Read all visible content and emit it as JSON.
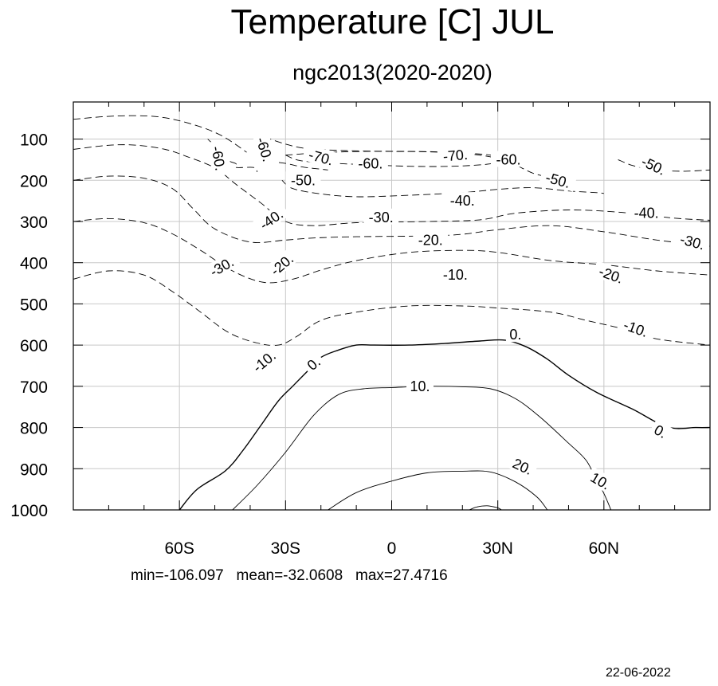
{
  "header": {
    "title": "Temperature [C] JUL",
    "subtitle": "ngc2013(2020-2020)"
  },
  "footer": {
    "stats": "min=-106.097   mean=-32.0608   max=27.4716",
    "date": "22-06-2022"
  },
  "chart_data": {
    "type": "contour",
    "title": "Temperature [C] JUL",
    "subtitle": "ngc2013(2020-2020)",
    "xlabel": "",
    "ylabel": "",
    "x_axis": {
      "range": [
        -90,
        90
      ],
      "ticks": [
        {
          "value": -60,
          "label": "60S"
        },
        {
          "value": -30,
          "label": "30S"
        },
        {
          "value": 0,
          "label": "0"
        },
        {
          "value": 30,
          "label": "30N"
        },
        {
          "value": 60,
          "label": "60N"
        }
      ],
      "minor_ticks": [
        -80,
        -70,
        -50,
        -40,
        -20,
        -10,
        10,
        20,
        40,
        50,
        70,
        80
      ]
    },
    "y_axis": {
      "range": [
        1000,
        10
      ],
      "ticks": [
        100,
        200,
        300,
        400,
        500,
        600,
        700,
        800,
        900,
        1000
      ]
    },
    "grid": true,
    "line_style": {
      "negative": "dashed",
      "zero": "solid-thick",
      "positive": "solid-thin"
    },
    "contours": [
      {
        "level": -70,
        "points": [
          [
            -30,
            139
          ],
          [
            -20,
            133
          ],
          [
            -8,
            130
          ],
          [
            5,
            130
          ],
          [
            17,
            133
          ],
          [
            27,
            138
          ],
          [
            32,
            148
          ],
          [
            28,
            160
          ],
          [
            17,
            166
          ],
          [
            5,
            166
          ],
          [
            -8,
            162
          ],
          [
            -18,
            158
          ],
          [
            -26,
            152
          ],
          [
            -30,
            139
          ]
        ]
      },
      {
        "level": -70,
        "points": [
          [
            -35,
            154
          ],
          [
            -30,
            159
          ],
          [
            -25,
            168
          ],
          [
            -18,
            175
          ]
        ]
      },
      {
        "level": -60,
        "points": [
          [
            -36,
            95
          ],
          [
            -30,
            112
          ],
          [
            -24,
            123
          ],
          [
            -13,
            128
          ],
          [
            0,
            130
          ],
          [
            13,
            131
          ],
          [
            23,
            137
          ],
          [
            30,
            147
          ],
          [
            34,
            158
          ],
          [
            37,
            171
          ],
          [
            40,
            183
          ],
          [
            44,
            192
          ],
          [
            46,
            194
          ]
        ]
      },
      {
        "level": -60,
        "points": [
          [
            -52,
            100
          ],
          [
            -49,
            126
          ],
          [
            -49,
            135
          ],
          [
            -46,
            153
          ],
          [
            -44,
            160
          ],
          [
            -44,
            169
          ],
          [
            -39,
            169
          ],
          [
            -38,
            180
          ]
        ]
      },
      {
        "level": -50,
        "points": [
          [
            -90,
            52
          ],
          [
            -78,
            44
          ],
          [
            -66,
            46
          ],
          [
            -56,
            65
          ],
          [
            -48,
            92
          ],
          [
            -41,
            132
          ]
        ]
      },
      {
        "level": -50,
        "points": [
          [
            -31,
            200
          ],
          [
            -28,
            220
          ],
          [
            -20,
            233
          ],
          [
            -10,
            240
          ],
          [
            3,
            237
          ],
          [
            20,
            230
          ],
          [
            30,
            222
          ],
          [
            40,
            218
          ],
          [
            50,
            226
          ],
          [
            58,
            230
          ],
          [
            60,
            232
          ]
        ]
      },
      {
        "level": -50,
        "points": [
          [
            64,
            150
          ],
          [
            68,
            164
          ],
          [
            72,
            171
          ],
          [
            76,
            176
          ],
          [
            83,
            178
          ],
          [
            90,
            175
          ]
        ]
      },
      {
        "level": -40,
        "points": [
          [
            -90,
            125
          ],
          [
            -80,
            115
          ],
          [
            -72,
            115
          ],
          [
            -64,
            125
          ],
          [
            -58,
            142
          ],
          [
            -50,
            170
          ],
          [
            -44,
            210
          ],
          [
            -37,
            255
          ],
          [
            -30,
            300
          ],
          [
            -22,
            310
          ],
          [
            -10,
            303
          ],
          [
            10,
            300
          ],
          [
            25,
            296
          ],
          [
            35,
            280
          ],
          [
            50,
            272
          ],
          [
            65,
            278
          ],
          [
            80,
            292
          ],
          [
            90,
            297
          ]
        ]
      },
      {
        "level": -30,
        "points": [
          [
            -90,
            200
          ],
          [
            -80,
            190
          ],
          [
            -70,
            195
          ],
          [
            -62,
            220
          ],
          [
            -56,
            270
          ],
          [
            -50,
            318
          ],
          [
            -40,
            350
          ],
          [
            -30,
            345
          ],
          [
            -22,
            340
          ],
          [
            -10,
            337
          ],
          [
            10,
            335
          ],
          [
            20,
            331
          ],
          [
            30,
            320
          ],
          [
            45,
            310
          ],
          [
            60,
            325
          ],
          [
            75,
            345
          ],
          [
            90,
            360
          ]
        ]
      },
      {
        "level": -20,
        "points": [
          [
            -90,
            300
          ],
          [
            -80,
            293
          ],
          [
            -70,
            303
          ],
          [
            -62,
            330
          ],
          [
            -54,
            370
          ],
          [
            -45,
            420
          ],
          [
            -36,
            448
          ],
          [
            -28,
            440
          ],
          [
            -20,
            418
          ],
          [
            -10,
            395
          ],
          [
            5,
            375
          ],
          [
            20,
            370
          ],
          [
            30,
            375
          ],
          [
            45,
            395
          ],
          [
            60,
            405
          ],
          [
            75,
            420
          ],
          [
            90,
            430
          ]
        ]
      },
      {
        "level": -10,
        "points": [
          [
            -90,
            440
          ],
          [
            -80,
            420
          ],
          [
            -70,
            430
          ],
          [
            -62,
            470
          ],
          [
            -54,
            520
          ],
          [
            -46,
            570
          ],
          [
            -38,
            595
          ],
          [
            -32,
            600
          ],
          [
            -27,
            580
          ],
          [
            -20,
            540
          ],
          [
            -10,
            520
          ],
          [
            5,
            505
          ],
          [
            20,
            505
          ],
          [
            30,
            510
          ],
          [
            45,
            520
          ],
          [
            55,
            540
          ],
          [
            65,
            560
          ],
          [
            75,
            585
          ],
          [
            90,
            600
          ]
        ]
      },
      {
        "level": 0,
        "points": [
          [
            -60,
            1000
          ],
          [
            -55,
            950
          ],
          [
            -47,
            905
          ],
          [
            -42,
            855
          ],
          [
            -37,
            795
          ],
          [
            -32,
            735
          ],
          [
            -28,
            700
          ],
          [
            -24,
            665
          ],
          [
            -20,
            630
          ],
          [
            -15,
            612
          ],
          [
            -10,
            600
          ],
          [
            -5,
            600
          ],
          [
            5,
            600
          ],
          [
            15,
            596
          ],
          [
            25,
            590
          ],
          [
            32,
            588
          ],
          [
            38,
            604
          ],
          [
            44,
            634
          ],
          [
            50,
            673
          ],
          [
            58,
            715
          ],
          [
            68,
            755
          ],
          [
            78,
            799
          ],
          [
            86,
            800
          ],
          [
            90,
            800
          ]
        ]
      },
      {
        "level": 10,
        "points": [
          [
            -45,
            1000
          ],
          [
            -38,
            940
          ],
          [
            -30,
            860
          ],
          [
            -22,
            770
          ],
          [
            -15,
            720
          ],
          [
            -8,
            706
          ],
          [
            0,
            703
          ],
          [
            10,
            700
          ],
          [
            20,
            701
          ],
          [
            28,
            706
          ],
          [
            35,
            730
          ],
          [
            42,
            775
          ],
          [
            50,
            838
          ],
          [
            55,
            880
          ],
          [
            58,
            930
          ],
          [
            60,
            960
          ],
          [
            62,
            1000
          ]
        ]
      },
      {
        "level": 20,
        "points": [
          [
            -18,
            1000
          ],
          [
            -10,
            958
          ],
          [
            0,
            930
          ],
          [
            10,
            910
          ],
          [
            20,
            906
          ],
          [
            28,
            908
          ],
          [
            35,
            932
          ],
          [
            41,
            968
          ],
          [
            44,
            1000
          ]
        ]
      },
      {
        "level": 20,
        "points": [
          [
            22,
            1000
          ],
          [
            24,
            993
          ],
          [
            27,
            990
          ],
          [
            30,
            995
          ],
          [
            31,
            1000
          ]
        ]
      }
    ],
    "contour_labels": [
      {
        "text": "-70.",
        "x": -20,
        "y": 145,
        "angle": 15
      },
      {
        "text": "-70.",
        "x": 18,
        "y": 140,
        "angle": -5
      },
      {
        "text": "-60.",
        "x": -36,
        "y": 125,
        "angle": 72
      },
      {
        "text": "-60.",
        "x": -49,
        "y": 147,
        "angle": 80
      },
      {
        "text": "-60.",
        "x": -6,
        "y": 160,
        "angle": 0
      },
      {
        "text": "-60.",
        "x": 33,
        "y": 150,
        "angle": 0
      },
      {
        "text": "-50.",
        "x": -25,
        "y": 200,
        "angle": 0
      },
      {
        "text": "-50.",
        "x": 47,
        "y": 200,
        "angle": 15
      },
      {
        "text": "-50.",
        "x": 74,
        "y": 165,
        "angle": 25
      },
      {
        "text": "-40.",
        "x": 20,
        "y": 250,
        "angle": 0
      },
      {
        "text": "-40.",
        "x": 72,
        "y": 280,
        "angle": 0
      },
      {
        "text": "-40.",
        "x": -34,
        "y": 295,
        "angle": -35
      },
      {
        "text": "-30.",
        "x": -3,
        "y": 290,
        "angle": 0
      },
      {
        "text": "-30.",
        "x": 85,
        "y": 350,
        "angle": 15
      },
      {
        "text": "-30.",
        "x": -48,
        "y": 410,
        "angle": -30
      },
      {
        "text": "-20.",
        "x": 11,
        "y": 345,
        "angle": 0
      },
      {
        "text": "-20.",
        "x": -31,
        "y": 405,
        "angle": -40
      },
      {
        "text": "-20.",
        "x": 62,
        "y": 430,
        "angle": 20
      },
      {
        "text": "-10.",
        "x": 18,
        "y": 430,
        "angle": 0
      },
      {
        "text": "-10.",
        "x": 69,
        "y": 560,
        "angle": 20
      },
      {
        "text": "-10.",
        "x": -36,
        "y": 640,
        "angle": -40
      },
      {
        "text": "0.",
        "x": 35,
        "y": 575,
        "angle": 0
      },
      {
        "text": "0.",
        "x": -22,
        "y": 645,
        "angle": -40
      },
      {
        "text": "0.",
        "x": 76,
        "y": 810,
        "angle": 30
      },
      {
        "text": "10.",
        "x": 8,
        "y": 700,
        "angle": 0
      },
      {
        "text": "10.",
        "x": 59,
        "y": 930,
        "angle": 30
      },
      {
        "text": "20.",
        "x": 37,
        "y": 895,
        "angle": 25
      }
    ]
  }
}
